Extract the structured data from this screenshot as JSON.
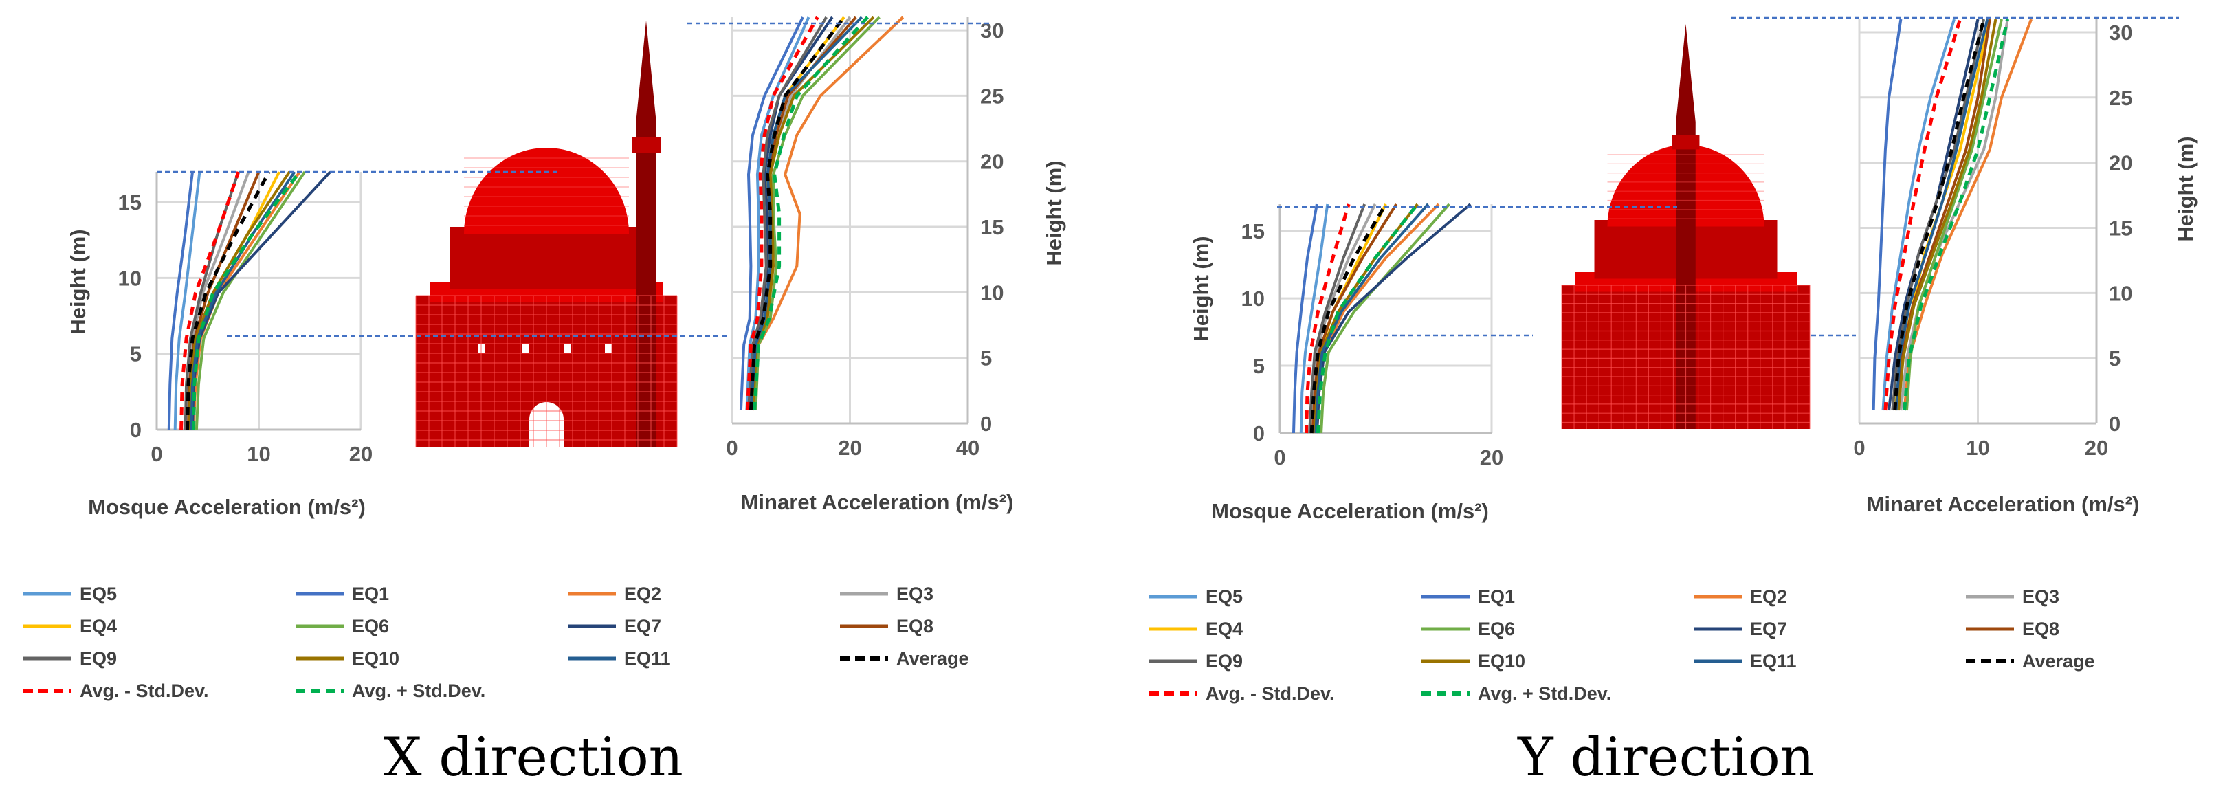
{
  "series_styles": [
    {
      "name": "EQ5",
      "color": "#5b9bd5",
      "dash": false
    },
    {
      "name": "EQ1",
      "color": "#4472c4",
      "dash": false
    },
    {
      "name": "EQ2",
      "color": "#ed7d31",
      "dash": false
    },
    {
      "name": "EQ3",
      "color": "#a5a5a5",
      "dash": false
    },
    {
      "name": "EQ4",
      "color": "#ffc000",
      "dash": false
    },
    {
      "name": "EQ6",
      "color": "#70ad47",
      "dash": false
    },
    {
      "name": "EQ7",
      "color": "#264478",
      "dash": false
    },
    {
      "name": "EQ8",
      "color": "#9e480e",
      "dash": false
    },
    {
      "name": "EQ9",
      "color": "#636363",
      "dash": false
    },
    {
      "name": "EQ10",
      "color": "#997300",
      "dash": false
    },
    {
      "name": "EQ11",
      "color": "#255e91",
      "dash": false
    },
    {
      "name": "Average",
      "color": "#000000",
      "dash": true
    },
    {
      "name": "Avg. - Std.Dev.",
      "color": "#ff0000",
      "dash": true
    },
    {
      "name": "Avg. + Std.Dev.",
      "color": "#00b050",
      "dash": true
    }
  ],
  "model_colors": {
    "dark": "#8b0000",
    "mid": "#c00000",
    "bright": "#e60000",
    "mesh": "#ff5050"
  },
  "chart_data": [
    {
      "id": "x-mosque",
      "type": "line",
      "xlabel": "Mosque Acceleration (m/s²)",
      "ylabel": "Height (m)",
      "xlim": [
        0,
        20
      ],
      "ylim": [
        0,
        17
      ],
      "xticks": [
        0,
        10,
        20
      ],
      "yticks": [
        0,
        5,
        10,
        15
      ],
      "y": [
        0,
        3,
        6,
        9,
        13,
        17
      ],
      "series": [
        {
          "name": "EQ5",
          "values": [
            1.8,
            1.9,
            2.2,
            2.8,
            3.5,
            4.2
          ]
        },
        {
          "name": "EQ1",
          "values": [
            1.2,
            1.3,
            1.5,
            2.0,
            2.8,
            3.5
          ]
        },
        {
          "name": "EQ2",
          "values": [
            3.6,
            3.8,
            4.3,
            6.0,
            10.0,
            14.0
          ]
        },
        {
          "name": "EQ3",
          "values": [
            3.0,
            3.1,
            3.5,
            4.5,
            6.8,
            9.0
          ]
        },
        {
          "name": "EQ4",
          "values": [
            3.3,
            3.5,
            4.0,
            5.5,
            9.0,
            12.0
          ]
        },
        {
          "name": "EQ6",
          "values": [
            3.9,
            4.1,
            4.6,
            6.5,
            10.5,
            14.5
          ]
        },
        {
          "name": "EQ7",
          "values": [
            3.5,
            3.6,
            4.2,
            6.0,
            11.5,
            17.0
          ]
        },
        {
          "name": "EQ8",
          "values": [
            3.1,
            3.2,
            3.7,
            5.0,
            7.5,
            10.0
          ]
        },
        {
          "name": "EQ9",
          "values": [
            2.8,
            2.9,
            3.3,
            4.3,
            6.0,
            8.0
          ]
        },
        {
          "name": "EQ10",
          "values": [
            3.2,
            3.3,
            3.8,
            5.5,
            9.0,
            13.0
          ]
        },
        {
          "name": "EQ11",
          "values": [
            3.4,
            3.5,
            4.0,
            5.8,
            9.5,
            13.5
          ]
        },
        {
          "name": "Average",
          "values": [
            3.0,
            3.1,
            3.5,
            4.8,
            7.8,
            11.0
          ]
        },
        {
          "name": "Avg. - Std.Dev.",
          "values": [
            2.4,
            2.5,
            2.9,
            3.8,
            6.0,
            8.0
          ]
        },
        {
          "name": "Avg. + Std.Dev.",
          "values": [
            3.6,
            3.7,
            4.1,
            5.5,
            9.5,
            14.0
          ]
        }
      ]
    },
    {
      "id": "x-minaret",
      "type": "line",
      "xlabel": "Minaret Acceleration (m/s²)",
      "ylabel": "Height (m)",
      "xlim": [
        0,
        40
      ],
      "ylim": [
        0,
        31
      ],
      "xticks": [
        0,
        20,
        40
      ],
      "yticks": [
        0,
        5,
        10,
        15,
        20,
        25,
        30
      ],
      "y": [
        1,
        6,
        8,
        12,
        16,
        19,
        22,
        25,
        31
      ],
      "series": [
        {
          "name": "EQ5",
          "values": [
            2.5,
            3.0,
            4.0,
            4.5,
            4.5,
            4.3,
            5.0,
            7.0,
            13.0
          ]
        },
        {
          "name": "EQ1",
          "values": [
            1.5,
            2.0,
            3.0,
            3.2,
            3.0,
            2.8,
            3.5,
            5.5,
            12.0
          ]
        },
        {
          "name": "EQ2",
          "values": [
            3.5,
            4.5,
            7.0,
            11.0,
            11.5,
            9.0,
            11.0,
            15.0,
            29.0
          ]
        },
        {
          "name": "EQ3",
          "values": [
            3.0,
            3.5,
            5.5,
            6.5,
            7.0,
            6.5,
            8.0,
            10.0,
            20.0
          ]
        },
        {
          "name": "EQ4",
          "values": [
            3.2,
            4.0,
            5.5,
            6.5,
            6.0,
            6.0,
            7.0,
            9.0,
            19.0
          ]
        },
        {
          "name": "EQ6",
          "values": [
            4.0,
            4.5,
            6.5,
            7.5,
            7.0,
            7.0,
            9.0,
            12.0,
            25.0
          ]
        },
        {
          "name": "EQ7",
          "values": [
            3.0,
            3.5,
            5.0,
            6.0,
            6.0,
            5.5,
            6.5,
            8.0,
            17.0
          ]
        },
        {
          "name": "EQ8",
          "values": [
            3.3,
            4.0,
            5.8,
            6.8,
            6.5,
            6.2,
            7.5,
            9.5,
            21.0
          ]
        },
        {
          "name": "EQ9",
          "values": [
            2.8,
            3.5,
            4.8,
            5.8,
            5.5,
            5.3,
            6.0,
            8.0,
            16.0
          ]
        },
        {
          "name": "EQ10",
          "values": [
            3.5,
            4.2,
            6.0,
            7.0,
            6.8,
            6.5,
            8.0,
            10.5,
            24.0
          ]
        },
        {
          "name": "EQ11",
          "values": [
            3.2,
            4.0,
            5.5,
            6.5,
            6.5,
            6.0,
            7.0,
            9.0,
            22.0
          ]
        },
        {
          "name": "Average",
          "values": [
            3.2,
            3.8,
            5.3,
            6.5,
            6.5,
            6.0,
            7.2,
            9.0,
            19.0
          ]
        },
        {
          "name": "Avg. - Std.Dev.",
          "values": [
            2.6,
            3.2,
            4.3,
            5.0,
            5.0,
            4.8,
            5.5,
            7.0,
            14.5
          ]
        },
        {
          "name": "Avg. + Std.Dev.",
          "values": [
            3.8,
            4.5,
            6.3,
            8.0,
            8.0,
            7.2,
            8.8,
            11.0,
            23.0
          ]
        }
      ]
    },
    {
      "id": "y-mosque",
      "type": "line",
      "xlabel": "Mosque Acceleration (m/s²)",
      "ylabel": "Height (m)",
      "xlim": [
        0,
        20
      ],
      "ylim": [
        0,
        17
      ],
      "xticks": [
        0,
        20
      ],
      "yticks": [
        0,
        5,
        10,
        15
      ],
      "y": [
        0,
        3,
        6,
        9,
        13,
        17
      ],
      "series": [
        {
          "name": "EQ5",
          "values": [
            2.0,
            2.1,
            2.4,
            3.0,
            3.8,
            4.5
          ]
        },
        {
          "name": "EQ1",
          "values": [
            1.3,
            1.4,
            1.6,
            2.0,
            2.6,
            3.5
          ]
        },
        {
          "name": "EQ2",
          "values": [
            3.5,
            3.7,
            4.2,
            6.0,
            10.0,
            15.0
          ]
        },
        {
          "name": "EQ3",
          "values": [
            3.0,
            3.1,
            3.5,
            4.5,
            6.5,
            9.0
          ]
        },
        {
          "name": "EQ4",
          "values": [
            3.2,
            3.4,
            3.8,
            5.0,
            7.5,
            10.0
          ]
        },
        {
          "name": "EQ6",
          "values": [
            3.9,
            4.1,
            4.6,
            7.0,
            11.5,
            16.0
          ]
        },
        {
          "name": "EQ7",
          "values": [
            3.5,
            3.7,
            4.2,
            6.5,
            12.0,
            18.0
          ]
        },
        {
          "name": "EQ8",
          "values": [
            3.1,
            3.3,
            3.7,
            5.0,
            7.8,
            11.0
          ]
        },
        {
          "name": "EQ9",
          "values": [
            2.8,
            3.0,
            3.3,
            4.3,
            6.0,
            8.0
          ]
        },
        {
          "name": "EQ10",
          "values": [
            3.3,
            3.5,
            3.9,
            5.5,
            9.0,
            13.0
          ]
        },
        {
          "name": "EQ11",
          "values": [
            3.4,
            3.6,
            4.0,
            5.8,
            9.5,
            14.0
          ]
        },
        {
          "name": "Average",
          "values": [
            3.0,
            3.2,
            3.6,
            4.6,
            7.0,
            10.0
          ]
        },
        {
          "name": "Avg. - Std.Dev.",
          "values": [
            2.5,
            2.6,
            2.9,
            3.6,
            5.0,
            6.5
          ]
        },
        {
          "name": "Avg. + Std.Dev.",
          "values": [
            3.6,
            3.8,
            4.3,
            5.5,
            9.0,
            13.0
          ]
        }
      ]
    },
    {
      "id": "y-minaret",
      "type": "line",
      "xlabel": "Minaret Acceleration (m/s²)",
      "ylabel": "Height (m)",
      "xlim": [
        0,
        20
      ],
      "ylim": [
        0,
        31
      ],
      "xticks": [
        0,
        10,
        20
      ],
      "yticks": [
        0,
        5,
        10,
        15,
        20,
        25,
        30
      ],
      "y": [
        1,
        5,
        9,
        13,
        17,
        21,
        25,
        31
      ],
      "series": [
        {
          "name": "EQ5",
          "values": [
            2.0,
            2.3,
            2.8,
            3.5,
            4.2,
            5.0,
            6.0,
            8.0
          ]
        },
        {
          "name": "EQ1",
          "values": [
            1.2,
            1.3,
            1.6,
            1.8,
            2.0,
            2.2,
            2.5,
            3.5
          ]
        },
        {
          "name": "EQ2",
          "values": [
            3.8,
            4.2,
            5.5,
            7.0,
            9.0,
            11.0,
            12.0,
            14.5
          ]
        },
        {
          "name": "EQ3",
          "values": [
            3.5,
            4.0,
            5.0,
            6.5,
            8.5,
            10.5,
            11.5,
            12.5
          ]
        },
        {
          "name": "EQ4",
          "values": [
            3.0,
            3.5,
            4.5,
            5.5,
            7.0,
            8.5,
            9.5,
            11.0
          ]
        },
        {
          "name": "EQ6",
          "values": [
            4.0,
            4.3,
            5.0,
            6.5,
            8.0,
            9.5,
            10.5,
            12.0
          ]
        },
        {
          "name": "EQ7",
          "values": [
            2.5,
            3.0,
            3.8,
            5.0,
            6.5,
            7.5,
            8.5,
            10.0
          ]
        },
        {
          "name": "EQ8",
          "values": [
            3.2,
            3.6,
            4.5,
            6.0,
            7.5,
            9.0,
            10.0,
            11.0
          ]
        },
        {
          "name": "EQ9",
          "values": [
            2.8,
            3.2,
            4.0,
            5.0,
            6.5,
            8.0,
            9.0,
            10.5
          ]
        },
        {
          "name": "EQ10",
          "values": [
            3.3,
            3.7,
            4.6,
            6.2,
            7.8,
            9.3,
            10.3,
            11.5
          ]
        },
        {
          "name": "EQ11",
          "values": [
            3.1,
            3.4,
            4.2,
            5.6,
            7.0,
            8.2,
            9.2,
            10.8
          ]
        },
        {
          "name": "Average",
          "values": [
            3.0,
            3.3,
            4.0,
            5.2,
            6.6,
            7.8,
            8.8,
            10.5
          ]
        },
        {
          "name": "Avg. - Std.Dev.",
          "values": [
            2.2,
            2.5,
            3.0,
            3.8,
            4.6,
            5.5,
            6.5,
            8.5
          ]
        },
        {
          "name": "Avg. + Std.Dev.",
          "values": [
            3.8,
            4.2,
            5.2,
            6.8,
            8.5,
            10.0,
            11.0,
            12.5
          ]
        }
      ]
    }
  ],
  "legend_labels": [
    "EQ5",
    "EQ1",
    "EQ2",
    "EQ3",
    "EQ4",
    "EQ6",
    "EQ7",
    "EQ8",
    "EQ9",
    "EQ10",
    "EQ11",
    "Average",
    "Avg. - Std.Dev.",
    "Avg. + Std.Dev."
  ],
  "captions": {
    "x": "X direction",
    "y": "Y direction"
  }
}
